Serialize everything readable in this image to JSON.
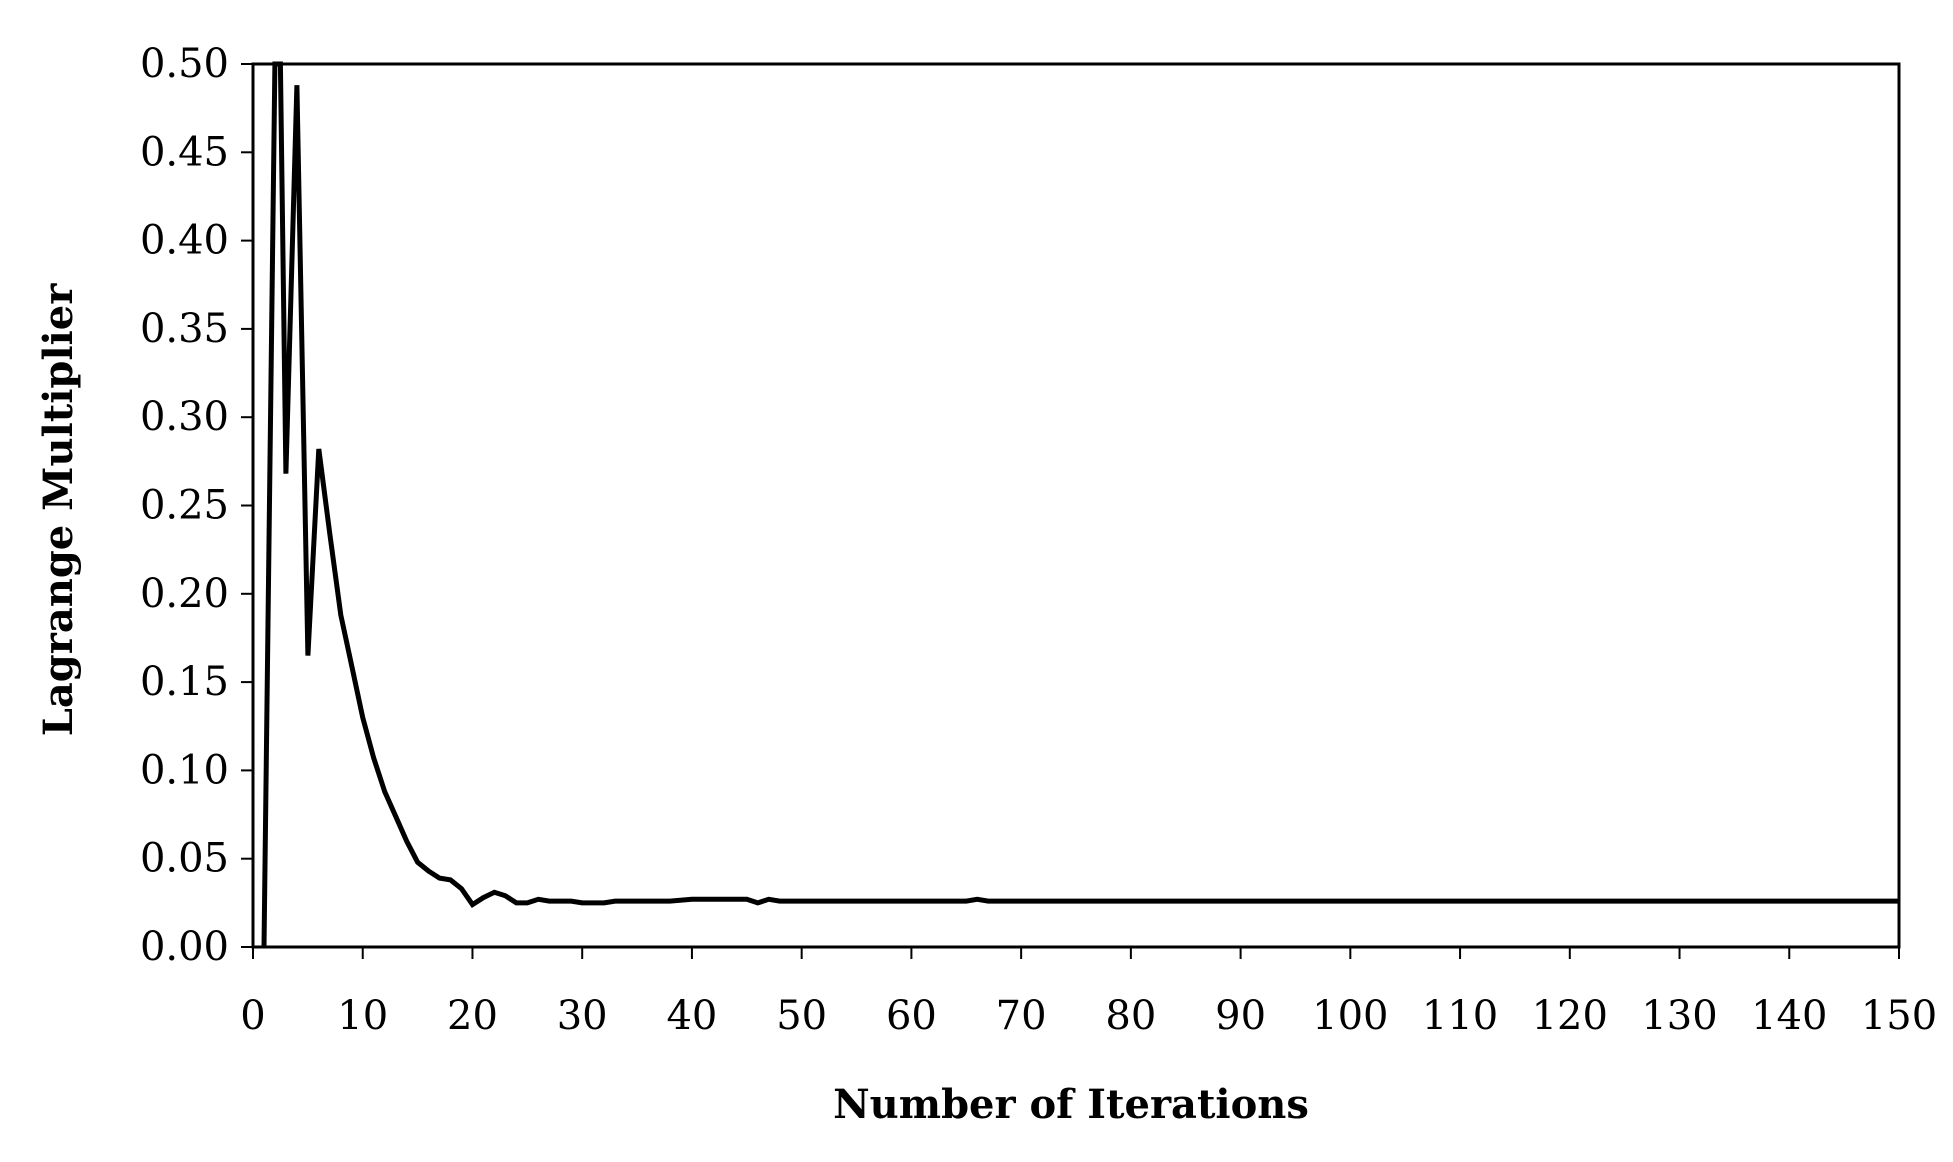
{
  "chart_data": {
    "type": "line",
    "title": "",
    "xlabel": "Number of Iterations",
    "ylabel": "Lagrange Multiplier",
    "xlim": [
      0,
      150
    ],
    "ylim": [
      0,
      0.5
    ],
    "x_ticks": [
      "0",
      "10",
      "20",
      "30",
      "40",
      "50",
      "60",
      "70",
      "80",
      "90",
      "100",
      "110",
      "120",
      "130",
      "140",
      "150"
    ],
    "y_ticks": [
      "0.00",
      "0.05",
      "0.10",
      "0.15",
      "0.20",
      "0.25",
      "0.30",
      "0.35",
      "0.40",
      "0.45",
      "0.50"
    ],
    "grid": false,
    "legend": "none",
    "line_color": "#000000",
    "series": [
      {
        "x": [
          1,
          2,
          2.5,
          3,
          4,
          5,
          6,
          7,
          8,
          9,
          10,
          11,
          12,
          13,
          14,
          15,
          16,
          17,
          18,
          19,
          20,
          21,
          22,
          23,
          24,
          25,
          26,
          27,
          28,
          29,
          30,
          31,
          32,
          33,
          34,
          35,
          36,
          38,
          40,
          42,
          44,
          45,
          46,
          47,
          48,
          50,
          55,
          60,
          65,
          66,
          67,
          70,
          80,
          90,
          100,
          110,
          120,
          130,
          140,
          150
        ],
        "y": [
          0.0,
          0.5,
          0.5,
          0.268,
          0.488,
          0.165,
          0.282,
          0.234,
          0.188,
          0.159,
          0.13,
          0.107,
          0.088,
          0.074,
          0.06,
          0.048,
          0.043,
          0.039,
          0.038,
          0.033,
          0.024,
          0.028,
          0.031,
          0.029,
          0.025,
          0.025,
          0.027,
          0.026,
          0.026,
          0.026,
          0.025,
          0.025,
          0.025,
          0.026,
          0.026,
          0.026,
          0.026,
          0.026,
          0.027,
          0.027,
          0.027,
          0.027,
          0.025,
          0.027,
          0.026,
          0.026,
          0.026,
          0.026,
          0.026,
          0.027,
          0.026,
          0.026,
          0.026,
          0.026,
          0.026,
          0.026,
          0.026,
          0.026,
          0.026,
          0.026
        ]
      }
    ]
  }
}
